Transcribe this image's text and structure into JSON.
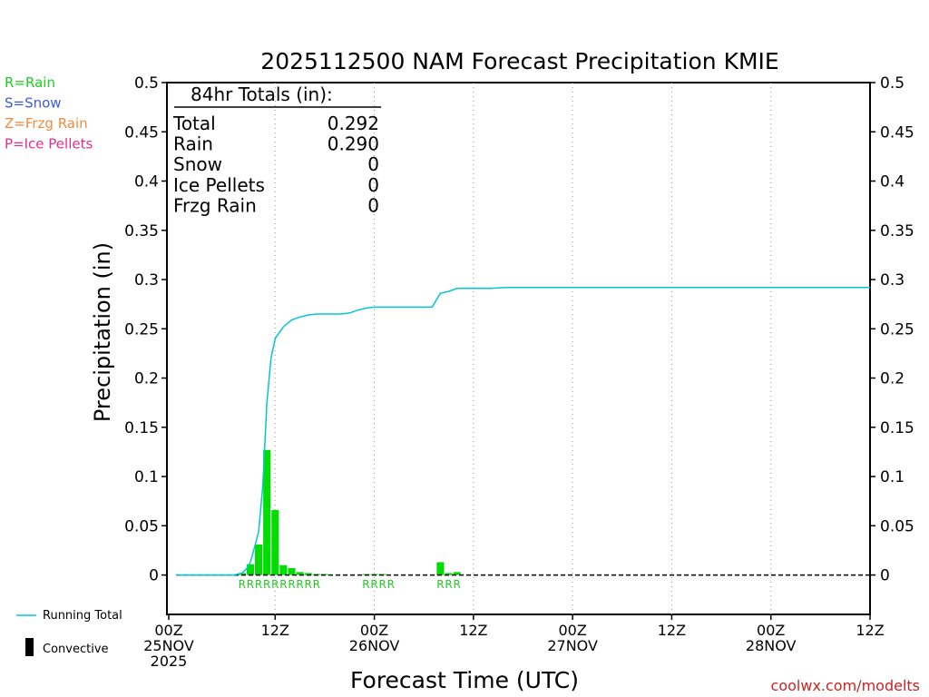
{
  "chart_data": {
    "type": "bar",
    "title": "2025112500 NAM Forecast Precipitation KMIE",
    "xlabel": "Forecast Time (UTC)",
    "ylabel": "Precipitation  (in)",
    "ylim": [
      -0.04,
      0.5
    ],
    "xlim_hours": [
      0,
      84
    ],
    "y_ticks": [
      "0.5",
      "0.45",
      "0.4",
      "0.35",
      "0.3",
      "0.25",
      "0.2",
      "0.15",
      "0.1",
      "0.05",
      "0"
    ],
    "y_tick_values": [
      0.5,
      0.45,
      0.4,
      0.35,
      0.3,
      0.25,
      0.2,
      0.15,
      0.1,
      0.05,
      0
    ],
    "x_ticks": [
      {
        "hour": 0,
        "l1": "00Z",
        "l2": "25NOV",
        "l3": "2025"
      },
      {
        "hour": 12,
        "l1": "12Z",
        "l2": "",
        "l3": ""
      },
      {
        "hour": 24,
        "l1": "00Z",
        "l2": "26NOV",
        "l3": ""
      },
      {
        "hour": 36,
        "l1": "12Z",
        "l2": "",
        "l3": ""
      },
      {
        "hour": 48,
        "l1": "00Z",
        "l2": "27NOV",
        "l3": ""
      },
      {
        "hour": 60,
        "l1": "12Z",
        "l2": "",
        "l3": ""
      },
      {
        "hour": 72,
        "l1": "00Z",
        "l2": "28NOV",
        "l3": ""
      },
      {
        "hour": 84,
        "l1": "12Z",
        "l2": "",
        "l3": ""
      }
    ],
    "bars": {
      "name": "Convective",
      "color": "#00dd00",
      "hours": [
        8,
        9,
        10,
        11,
        12,
        13,
        14,
        15,
        16,
        17,
        18,
        23,
        24,
        25,
        32,
        33,
        34
      ],
      "values": [
        0.002,
        0.011,
        0.031,
        0.127,
        0.066,
        0.01,
        0.007,
        0.003,
        0.002,
        0.001,
        0.001,
        0.001,
        0.001,
        0.001,
        0.013,
        0.002,
        0.003
      ]
    },
    "running_total": {
      "name": "Running Total",
      "color": "#00c8d0",
      "points": [
        [
          0,
          0
        ],
        [
          7,
          0
        ],
        [
          7.5,
          0.001
        ],
        [
          8,
          0.002
        ],
        [
          8.5,
          0.006
        ],
        [
          9,
          0.013
        ],
        [
          9.5,
          0.028
        ],
        [
          10,
          0.044
        ],
        [
          10.5,
          0.09
        ],
        [
          11,
          0.175
        ],
        [
          11.5,
          0.22
        ],
        [
          12,
          0.24
        ],
        [
          12.5,
          0.246
        ],
        [
          13,
          0.252
        ],
        [
          14,
          0.259
        ],
        [
          15,
          0.262
        ],
        [
          16,
          0.264
        ],
        [
          17,
          0.265
        ],
        [
          18,
          0.265
        ],
        [
          19,
          0.265
        ],
        [
          20,
          0.265
        ],
        [
          21,
          0.266
        ],
        [
          22,
          0.269
        ],
        [
          23,
          0.271
        ],
        [
          24,
          0.272
        ],
        [
          26,
          0.272
        ],
        [
          28,
          0.272
        ],
        [
          31,
          0.272
        ],
        [
          32,
          0.286
        ],
        [
          33,
          0.288
        ],
        [
          34,
          0.291
        ],
        [
          36,
          0.291
        ],
        [
          38,
          0.291
        ],
        [
          40,
          0.292
        ],
        [
          50,
          0.292
        ],
        [
          84,
          0.292
        ]
      ]
    },
    "precip_type_labels": [
      {
        "hour": 8,
        "text": "R"
      },
      {
        "hour": 9,
        "text": "R"
      },
      {
        "hour": 10,
        "text": "R"
      },
      {
        "hour": 11,
        "text": "R"
      },
      {
        "hour": 12,
        "text": "R"
      },
      {
        "hour": 13,
        "text": "R"
      },
      {
        "hour": 14,
        "text": "R"
      },
      {
        "hour": 15,
        "text": "R"
      },
      {
        "hour": 16,
        "text": "R"
      },
      {
        "hour": 17,
        "text": "R"
      },
      {
        "hour": 23,
        "text": "R"
      },
      {
        "hour": 24,
        "text": "R"
      },
      {
        "hour": 25,
        "text": "R"
      },
      {
        "hour": 26,
        "text": "R"
      },
      {
        "hour": 32,
        "text": "R"
      },
      {
        "hour": 33,
        "text": "R"
      },
      {
        "hour": 34,
        "text": "R"
      }
    ],
    "totals_box": {
      "heading": "84hr Totals (in):",
      "rows": [
        {
          "label": "Total",
          "value": "0.292"
        },
        {
          "label": "Rain",
          "value": "0.290"
        },
        {
          "label": "Snow",
          "value": "0"
        },
        {
          "label": "Ice Pellets",
          "value": "0"
        },
        {
          "label": "Frzg Rain",
          "value": "0"
        }
      ]
    },
    "type_legend": [
      {
        "text": "R=Rain",
        "color": "#22cc22"
      },
      {
        "text": "S=Snow",
        "color": "#3b5bdb"
      },
      {
        "text": "Z=Frzg Rain",
        "color": "#f08c3c"
      },
      {
        "text": "P=Ice Pellets",
        "color": "#e0308c"
      }
    ],
    "series_legend": [
      {
        "text": "Running Total",
        "kind": "line",
        "color": "#00c8d0"
      },
      {
        "text": "Convective",
        "kind": "bar",
        "color": "#000000"
      }
    ],
    "credit": "coolwx.com/modelts"
  }
}
